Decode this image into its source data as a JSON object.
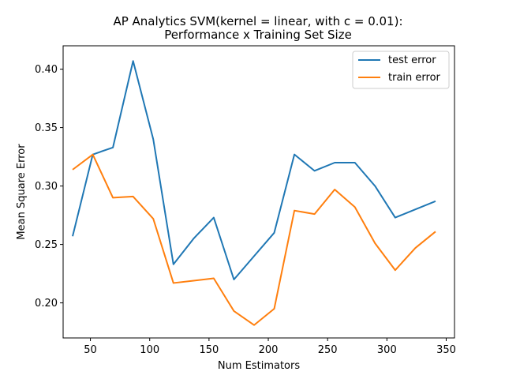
{
  "chart_data": {
    "type": "line",
    "title_line1": "AP Analytics SVM(kernel = linear, with c = 0.01):",
    "title_line2": "Performance x Training Set Size",
    "xlabel": "Num Estimators",
    "ylabel": "Mean Square Error",
    "xlim": [
      27,
      357
    ],
    "ylim": [
      0.17,
      0.42
    ],
    "xticks": [
      50,
      100,
      150,
      200,
      250,
      300,
      350
    ],
    "yticks": [
      0.2,
      0.25,
      0.3,
      0.35,
      0.4
    ],
    "xtick_labels": [
      "50",
      "100",
      "150",
      "200",
      "250",
      "300",
      "350"
    ],
    "ytick_labels": [
      "0.20",
      "0.25",
      "0.30",
      "0.35",
      "0.40"
    ],
    "grid": false,
    "legend_position": "top-right",
    "x": [
      35,
      52,
      69,
      86,
      103,
      120,
      137,
      154,
      171,
      188,
      205,
      222,
      239,
      256,
      273,
      290,
      307,
      324,
      341
    ],
    "series": [
      {
        "name": "test error",
        "color": "#1f77b4",
        "values": [
          0.257,
          0.327,
          0.333,
          0.407,
          0.34,
          0.233,
          0.255,
          0.273,
          0.22,
          0.24,
          0.26,
          0.327,
          0.313,
          0.32,
          0.32,
          0.3,
          0.273,
          0.28,
          0.287
        ]
      },
      {
        "name": "train error",
        "color": "#ff7f0e",
        "values": [
          0.314,
          0.327,
          0.29,
          0.291,
          0.272,
          0.217,
          0.219,
          0.221,
          0.193,
          0.181,
          0.195,
          0.279,
          0.276,
          0.297,
          0.282,
          0.251,
          0.228,
          0.247,
          0.261
        ]
      }
    ]
  }
}
